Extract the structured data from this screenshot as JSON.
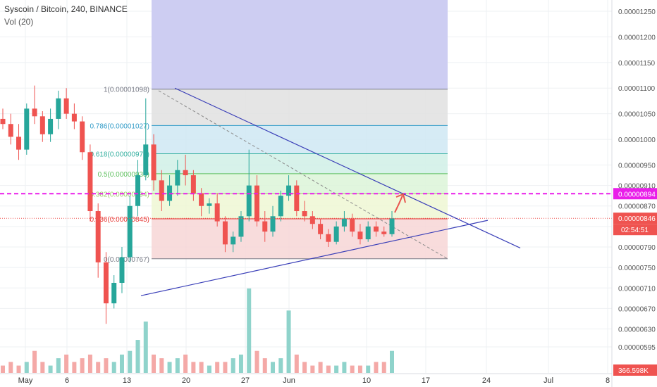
{
  "header": {
    "title": "Syscoin / Bitcoin, 240, BINANCE",
    "volume": "Vol (20)"
  },
  "colors": {
    "up": "#26a69a",
    "down": "#ef5350",
    "dashed_magenta": "#e91ee9",
    "trend": "#3a3fb8"
  },
  "chart_data": {
    "type": "candlestick",
    "x_tick_labels": [
      "May",
      "6",
      "13",
      "20",
      "27",
      "Jun",
      "10",
      "17",
      "24",
      "Jul",
      "8"
    ],
    "y_tick_labels": [
      "0.00001250",
      "0.00001200",
      "0.00001150",
      "0.00001100",
      "0.00001050",
      "0.00001000",
      "0.00000950",
      "0.00000910",
      "0.00000870",
      "0.00000830",
      "0.00000790",
      "0.00000750",
      "0.00000710",
      "0.00000670",
      "0.00000630",
      "0.00000595"
    ],
    "y_ticks": [
      12.5,
      12.0,
      11.5,
      11.0,
      10.5,
      10.0,
      9.5,
      9.1,
      8.7,
      8.3,
      7.9,
      7.5,
      7.1,
      6.7,
      6.3,
      5.95
    ],
    "y_scale_note": "values in 1e-6 BTC",
    "fib_levels": [
      {
        "ratio": 1,
        "label": "1(0.00001098)",
        "price": 10.98,
        "color": "#787b86",
        "fill": "#e0e0e0"
      },
      {
        "ratio": 0.786,
        "label": "0.786(0.00001027)",
        "price": 10.27,
        "color": "#2f9ac7",
        "fill": "#cfe8f3"
      },
      {
        "ratio": 0.618,
        "label": "0.618(0.00000972)",
        "price": 9.72,
        "color": "#36b0a0",
        "fill": "#d0f0e6"
      },
      {
        "ratio": 0.5,
        "label": "0.5(0.00000933)",
        "price": 9.33,
        "color": "#5cbf5c",
        "fill": "#dcf5d8"
      },
      {
        "ratio": 0.382,
        "label": "0.382(0.00000894)",
        "price": 8.94,
        "color": "#9ccc65",
        "fill": "#eef7d4"
      },
      {
        "ratio": 0.236,
        "label": "0.236(0.00000845)",
        "price": 8.45,
        "color": "#e53935",
        "fill": "#f7d6d6"
      },
      {
        "ratio": 0,
        "label": "0(0.00000767)",
        "price": 7.67,
        "color": "#787b86",
        "fill": ""
      }
    ],
    "upper_zone_color": "#cdcdf2",
    "price_labels": [
      {
        "text": "0.00000894",
        "price": 8.94,
        "bg": "#e91ee9"
      },
      {
        "text": "0.00000846",
        "price": 8.46,
        "bg": "#ef5350"
      }
    ],
    "countdown": "02:54:51",
    "volume_label": "366.598K",
    "x_range_days": [
      0,
      71
    ],
    "series": [
      {
        "t": 0,
        "o": 10.4,
        "h": 10.6,
        "l": 10.2,
        "c": 10.3
      },
      {
        "t": 1,
        "o": 10.3,
        "h": 10.5,
        "l": 9.9,
        "c": 10.05
      },
      {
        "t": 2,
        "o": 10.05,
        "h": 10.3,
        "l": 9.6,
        "c": 9.8
      },
      {
        "t": 3,
        "o": 9.8,
        "h": 10.7,
        "l": 9.7,
        "c": 10.6
      },
      {
        "t": 4,
        "o": 10.6,
        "h": 11.05,
        "l": 10.3,
        "c": 10.45
      },
      {
        "t": 5,
        "o": 10.45,
        "h": 10.55,
        "l": 9.95,
        "c": 10.1
      },
      {
        "t": 6,
        "o": 10.1,
        "h": 10.6,
        "l": 9.95,
        "c": 10.4
      },
      {
        "t": 7,
        "o": 10.4,
        "h": 10.95,
        "l": 10.2,
        "c": 10.8
      },
      {
        "t": 8,
        "o": 10.8,
        "h": 11.0,
        "l": 10.4,
        "c": 10.5
      },
      {
        "t": 9,
        "o": 10.5,
        "h": 10.7,
        "l": 10.2,
        "c": 10.35
      },
      {
        "t": 10,
        "o": 10.35,
        "h": 10.45,
        "l": 9.6,
        "c": 9.75
      },
      {
        "t": 11,
        "o": 9.75,
        "h": 9.9,
        "l": 8.4,
        "c": 8.6
      },
      {
        "t": 12,
        "o": 8.6,
        "h": 8.75,
        "l": 7.3,
        "c": 7.6
      },
      {
        "t": 13,
        "o": 7.6,
        "h": 7.8,
        "l": 6.4,
        "c": 6.8
      },
      {
        "t": 14,
        "o": 6.8,
        "h": 7.35,
        "l": 6.7,
        "c": 7.2
      },
      {
        "t": 15,
        "o": 7.2,
        "h": 7.9,
        "l": 7.0,
        "c": 7.7
      },
      {
        "t": 16,
        "o": 7.7,
        "h": 8.9,
        "l": 7.6,
        "c": 8.7
      },
      {
        "t": 17,
        "o": 8.7,
        "h": 9.6,
        "l": 8.5,
        "c": 9.3
      },
      {
        "t": 18,
        "o": 9.3,
        "h": 10.8,
        "l": 9.2,
        "c": 9.9
      },
      {
        "t": 19,
        "o": 9.9,
        "h": 10.1,
        "l": 9.0,
        "c": 9.2
      },
      {
        "t": 20,
        "o": 9.2,
        "h": 9.4,
        "l": 8.6,
        "c": 8.8
      },
      {
        "t": 21,
        "o": 8.8,
        "h": 9.3,
        "l": 8.7,
        "c": 9.1
      },
      {
        "t": 22,
        "o": 9.1,
        "h": 9.6,
        "l": 8.9,
        "c": 9.4
      },
      {
        "t": 23,
        "o": 9.4,
        "h": 9.7,
        "l": 9.1,
        "c": 9.3
      },
      {
        "t": 24,
        "o": 9.3,
        "h": 9.4,
        "l": 8.8,
        "c": 8.95
      },
      {
        "t": 25,
        "o": 8.95,
        "h": 9.05,
        "l": 8.5,
        "c": 8.7
      },
      {
        "t": 26,
        "o": 8.7,
        "h": 8.85,
        "l": 8.55,
        "c": 8.75
      },
      {
        "t": 27,
        "o": 8.75,
        "h": 8.95,
        "l": 8.3,
        "c": 8.4
      },
      {
        "t": 28,
        "o": 8.4,
        "h": 8.5,
        "l": 7.8,
        "c": 7.95
      },
      {
        "t": 29,
        "o": 7.95,
        "h": 8.2,
        "l": 7.8,
        "c": 8.1
      },
      {
        "t": 30,
        "o": 8.1,
        "h": 8.6,
        "l": 8.0,
        "c": 8.5
      },
      {
        "t": 31,
        "o": 8.5,
        "h": 9.8,
        "l": 8.4,
        "c": 9.1
      },
      {
        "t": 32,
        "o": 9.1,
        "h": 9.3,
        "l": 8.3,
        "c": 8.4
      },
      {
        "t": 33,
        "o": 8.4,
        "h": 8.6,
        "l": 8.0,
        "c": 8.2
      },
      {
        "t": 34,
        "o": 8.2,
        "h": 8.7,
        "l": 8.1,
        "c": 8.5
      },
      {
        "t": 35,
        "o": 8.5,
        "h": 9.0,
        "l": 8.4,
        "c": 8.9
      },
      {
        "t": 36,
        "o": 8.9,
        "h": 9.3,
        "l": 8.8,
        "c": 9.1
      },
      {
        "t": 37,
        "o": 9.1,
        "h": 9.2,
        "l": 8.5,
        "c": 8.6
      },
      {
        "t": 38,
        "o": 8.6,
        "h": 8.8,
        "l": 8.4,
        "c": 8.5
      },
      {
        "t": 39,
        "o": 8.5,
        "h": 8.6,
        "l": 8.25,
        "c": 8.35
      },
      {
        "t": 40,
        "o": 8.35,
        "h": 8.45,
        "l": 8.05,
        "c": 8.15
      },
      {
        "t": 41,
        "o": 8.15,
        "h": 8.25,
        "l": 7.9,
        "c": 8.0
      },
      {
        "t": 42,
        "o": 8.0,
        "h": 8.4,
        "l": 7.95,
        "c": 8.3
      },
      {
        "t": 43,
        "o": 8.3,
        "h": 8.6,
        "l": 8.2,
        "c": 8.45
      },
      {
        "t": 44,
        "o": 8.45,
        "h": 8.55,
        "l": 8.1,
        "c": 8.2
      },
      {
        "t": 45,
        "o": 8.2,
        "h": 8.35,
        "l": 7.95,
        "c": 8.05
      },
      {
        "t": 46,
        "o": 8.05,
        "h": 8.4,
        "l": 8.0,
        "c": 8.3
      },
      {
        "t": 47,
        "o": 8.3,
        "h": 8.4,
        "l": 8.1,
        "c": 8.2
      },
      {
        "t": 48,
        "o": 8.2,
        "h": 8.3,
        "l": 8.1,
        "c": 8.15
      },
      {
        "t": 49,
        "o": 8.15,
        "h": 8.6,
        "l": 8.1,
        "c": 8.46
      }
    ],
    "volume": [
      2,
      3,
      2,
      3,
      6,
      3,
      2,
      4,
      5,
      3,
      4,
      5,
      3,
      4,
      3,
      5,
      6,
      9,
      14,
      5,
      4,
      3,
      4,
      5,
      3,
      3,
      2,
      3,
      3,
      4,
      5,
      23,
      6,
      4,
      3,
      4,
      17,
      5,
      3,
      2,
      3,
      2,
      2,
      3,
      2,
      2,
      2,
      3,
      3,
      6
    ]
  }
}
